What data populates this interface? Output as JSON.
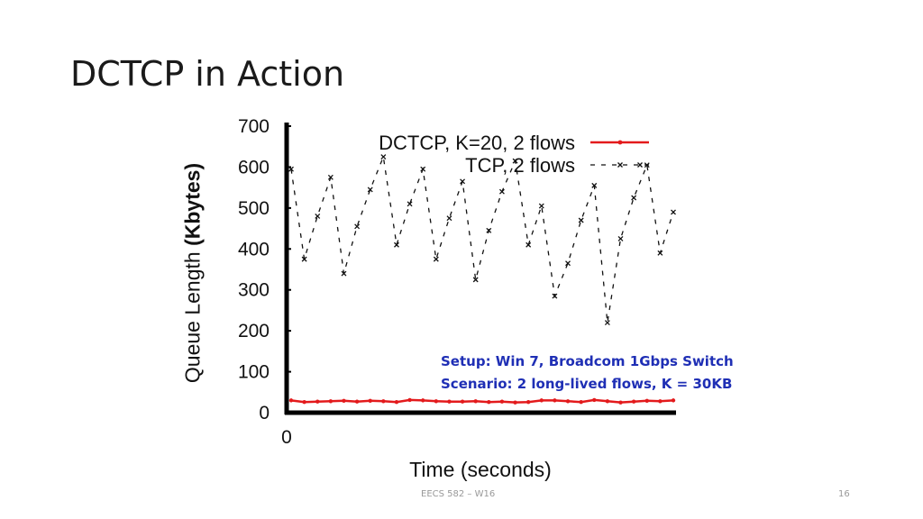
{
  "slide": {
    "title": "DCTCP in Action",
    "footer": "EECS 582 – W16",
    "page_number": "16"
  },
  "chart_data": {
    "type": "line",
    "title": "",
    "xlabel": "Time (seconds)",
    "ylabel_regular": "Queue Length ",
    "ylabel_bold": "(Kbytes)",
    "ylim": [
      0,
      700
    ],
    "yticks": [
      0,
      100,
      200,
      300,
      400,
      500,
      600,
      700
    ],
    "ytick_labels": [
      "0",
      "100",
      "200",
      "300",
      "400",
      "500",
      "600",
      "700"
    ],
    "xlim": [
      0,
      29
    ],
    "xtick_labels": [
      "0"
    ],
    "grid": false,
    "legend_position": "top-right",
    "annotation_lines": [
      "Setup: Win 7, Broadcom 1Gbps Switch",
      "Scenario: 2 long-lived flows, K = 30KB"
    ],
    "series": [
      {
        "name": "DCTCP, K=20, 2 flows",
        "color": "#e31a1c",
        "style": "solid",
        "marker": "dot",
        "x": [
          0,
          1,
          2,
          3,
          4,
          5,
          6,
          7,
          8,
          9,
          10,
          11,
          12,
          13,
          14,
          15,
          16,
          17,
          18,
          19,
          20,
          21,
          22,
          23,
          24,
          25,
          26,
          27,
          28,
          29
        ],
        "y": [
          30,
          26,
          27,
          28,
          29,
          27,
          29,
          28,
          26,
          31,
          30,
          28,
          27,
          27,
          28,
          26,
          27,
          25,
          26,
          30,
          30,
          28,
          26,
          31,
          28,
          25,
          27,
          29,
          28,
          30
        ]
      },
      {
        "name": "TCP, 2 flows",
        "color": "#111111",
        "style": "dashed",
        "marker": "x",
        "x": [
          0,
          1,
          2,
          3,
          4,
          5,
          6,
          7,
          8,
          9,
          10,
          11,
          12,
          13,
          14,
          15,
          16,
          17,
          18,
          19,
          20,
          21,
          22,
          23,
          24,
          25,
          26,
          27,
          28,
          29
        ],
        "y": [
          595,
          375,
          480,
          575,
          340,
          455,
          545,
          625,
          410,
          510,
          595,
          375,
          475,
          565,
          325,
          445,
          540,
          615,
          410,
          505,
          285,
          365,
          470,
          555,
          220,
          425,
          525,
          605,
          390,
          490
        ]
      }
    ]
  }
}
